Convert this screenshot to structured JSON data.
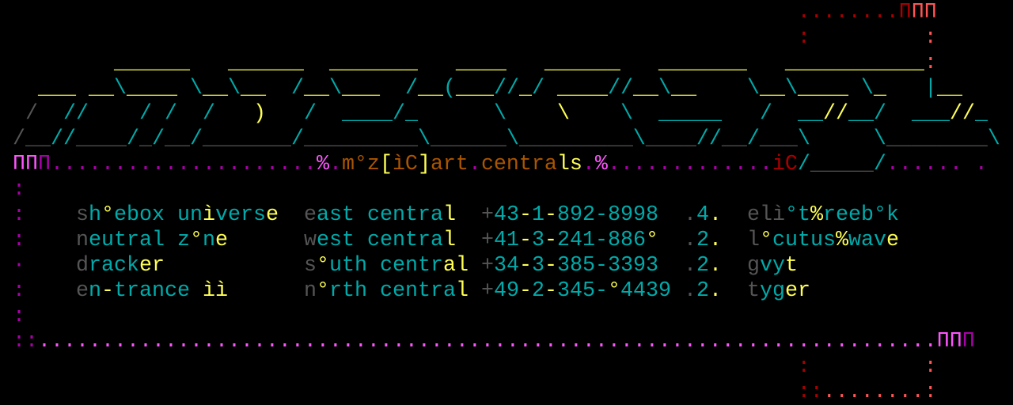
{
  "palette": {
    "g": "#555555",
    "c": "#00aaaa",
    "y": "#ffff55",
    "o": "#aa5500",
    "M": "#ff55ff",
    "m": "#aa00aa",
    "r": "#aa0000",
    "R": "#ff5555"
  },
  "header": {
    "title": "m°z[ìC]art.centrals"
  },
  "art_lines": [
    [
      [
        "                                                               ",
        ""
      ],
      [
        "........",
        "r"
      ],
      [
        "Π",
        "r"
      ],
      [
        "ΠΠ",
        "R"
      ]
    ],
    [
      [
        "                                                               ",
        ""
      ],
      [
        ":",
        "r"
      ],
      [
        "         ",
        ""
      ],
      [
        ":",
        "R"
      ]
    ],
    [
      [
        "         ",
        ""
      ],
      [
        "______",
        "y"
      ],
      [
        "   ",
        ""
      ],
      [
        "______",
        "y"
      ],
      [
        "  ",
        ""
      ],
      [
        "_______",
        "y"
      ],
      [
        "   ",
        ""
      ],
      [
        "____",
        "y"
      ],
      [
        "   ",
        ""
      ],
      [
        "______",
        "y"
      ],
      [
        "   ",
        ""
      ],
      [
        "_______",
        "y"
      ],
      [
        "   ",
        ""
      ],
      [
        "___________",
        "y"
      ],
      [
        ":",
        "R"
      ]
    ],
    [
      [
        "   ",
        ""
      ],
      [
        "___",
        "y"
      ],
      [
        " ",
        ""
      ],
      [
        "__",
        "y"
      ],
      [
        "\\",
        "c"
      ],
      [
        "____",
        "y"
      ],
      [
        " ",
        ""
      ],
      [
        "\\",
        "c"
      ],
      [
        "__",
        "y"
      ],
      [
        "\\",
        "c"
      ],
      [
        "__",
        "y"
      ],
      [
        "  ",
        ""
      ],
      [
        "/",
        "c"
      ],
      [
        "__",
        "y"
      ],
      [
        "\\",
        "c"
      ],
      [
        "___",
        "y"
      ],
      [
        "  ",
        ""
      ],
      [
        "/",
        "c"
      ],
      [
        "__",
        "y"
      ],
      [
        "(",
        "c"
      ],
      [
        "___",
        "y"
      ],
      [
        "//",
        "c"
      ],
      [
        "_",
        "y"
      ],
      [
        "/",
        "c"
      ],
      [
        " ",
        ""
      ],
      [
        "____",
        "y"
      ],
      [
        "//",
        "c"
      ],
      [
        "__",
        "y"
      ],
      [
        "\\",
        "c"
      ],
      [
        "__",
        "y"
      ],
      [
        "    ",
        ""
      ],
      [
        "\\",
        "c"
      ],
      [
        "__",
        "y"
      ],
      [
        "\\",
        "c"
      ],
      [
        "____",
        "y"
      ],
      [
        " ",
        ""
      ],
      [
        "\\",
        "c"
      ],
      [
        "_",
        "y"
      ],
      [
        "   ",
        ""
      ],
      [
        "|",
        "c"
      ],
      [
        "__",
        "y"
      ]
    ],
    [
      [
        "  ",
        ""
      ],
      [
        "/",
        "g"
      ],
      [
        "  ",
        ""
      ],
      [
        "//",
        "c"
      ],
      [
        "    ",
        ""
      ],
      [
        "/",
        "c"
      ],
      [
        " ",
        ""
      ],
      [
        "/",
        "c"
      ],
      [
        "  ",
        ""
      ],
      [
        "/",
        "c"
      ],
      [
        "   ",
        ""
      ],
      [
        ")",
        "y"
      ],
      [
        "   ",
        ""
      ],
      [
        "/",
        "c"
      ],
      [
        "  ",
        ""
      ],
      [
        "____",
        "c"
      ],
      [
        "/",
        "c"
      ],
      [
        "_",
        "c"
      ],
      [
        "      ",
        ""
      ],
      [
        "\\",
        "c"
      ],
      [
        "    ",
        ""
      ],
      [
        "\\",
        "y"
      ],
      [
        "    ",
        ""
      ],
      [
        "\\",
        "c"
      ],
      [
        "  ",
        ""
      ],
      [
        "_____",
        "c"
      ],
      [
        "   ",
        ""
      ],
      [
        "/",
        "c"
      ],
      [
        "  ",
        ""
      ],
      [
        "__",
        "c"
      ],
      [
        "//",
        "y"
      ],
      [
        "__",
        "c"
      ],
      [
        "/",
        "c"
      ],
      [
        "  ",
        ""
      ],
      [
        "___",
        "c"
      ],
      [
        "//",
        "y"
      ],
      [
        "_",
        "c"
      ]
    ],
    [
      [
        " ",
        ""
      ],
      [
        "/",
        "g"
      ],
      [
        "__",
        "g"
      ],
      [
        "//",
        "c"
      ],
      [
        "____",
        "g"
      ],
      [
        "/",
        "c"
      ],
      [
        "_",
        "g"
      ],
      [
        "/",
        "c"
      ],
      [
        "__",
        "g"
      ],
      [
        "/",
        "c"
      ],
      [
        "_______",
        "g"
      ],
      [
        "/",
        "c"
      ],
      [
        "_________",
        "g"
      ],
      [
        "\\",
        "c"
      ],
      [
        "______",
        "g"
      ],
      [
        "\\",
        "c"
      ],
      [
        "_________",
        "g"
      ],
      [
        "\\",
        "c"
      ],
      [
        "____",
        "g"
      ],
      [
        "//",
        "c"
      ],
      [
        "__",
        "g"
      ],
      [
        "/",
        "c"
      ],
      [
        "___",
        "g"
      ],
      [
        "\\",
        "c"
      ],
      [
        "     ",
        ""
      ],
      [
        "\\",
        "c"
      ],
      [
        "________",
        "g"
      ],
      [
        "\\",
        "c"
      ]
    ],
    [
      [
        " ",
        ""
      ],
      [
        "ΠΠ",
        "M"
      ],
      [
        "Π",
        "m"
      ],
      [
        ".....................",
        "m"
      ],
      [
        "%",
        "M"
      ],
      [
        ".",
        "m"
      ],
      [
        "m°z",
        "o"
      ],
      [
        "[",
        "y"
      ],
      [
        "ìC",
        "o"
      ],
      [
        "]",
        "y"
      ],
      [
        "art",
        "o"
      ],
      [
        ".",
        "m"
      ],
      [
        "centra",
        "o"
      ],
      [
        "ls",
        "y"
      ],
      [
        ".",
        "m"
      ],
      [
        "%",
        "M"
      ],
      [
        ".............",
        "m"
      ],
      [
        "iC",
        "r"
      ],
      [
        "/",
        "c"
      ],
      [
        "_____",
        "g"
      ],
      [
        "/",
        "c"
      ],
      [
        "......",
        "m"
      ],
      [
        " ",
        ""
      ],
      [
        ".",
        "m"
      ]
    ],
    [
      [
        " ",
        ""
      ],
      [
        ":",
        "m"
      ]
    ],
    [
      [
        " ",
        ""
      ],
      [
        ":",
        "m"
      ]
    ],
    [
      [
        " ",
        ""
      ],
      [
        ":",
        "m"
      ]
    ],
    [
      [
        " ",
        ""
      ],
      [
        "·",
        "m"
      ]
    ],
    [
      [
        " ",
        ""
      ],
      [
        ":",
        "m"
      ]
    ],
    [
      [
        " ",
        ""
      ],
      [
        ":",
        "m"
      ]
    ],
    [
      [
        " ",
        ""
      ],
      [
        "::",
        "m"
      ],
      [
        ".......................................................................",
        "M"
      ],
      [
        "ΠΠ",
        "M"
      ],
      [
        "Π",
        "m"
      ]
    ],
    [
      [
        "                                                               ",
        ""
      ],
      [
        ":",
        "r"
      ],
      [
        "         ",
        ""
      ],
      [
        ":",
        "R"
      ]
    ],
    [
      [
        "                                                               ",
        ""
      ],
      [
        "::",
        "r"
      ],
      [
        "........",
        "R"
      ],
      [
        ":",
        "R"
      ]
    ]
  ],
  "entries": [
    {
      "name": [
        [
          "s",
          "g"
        ],
        [
          "h",
          "c"
        ],
        [
          "°",
          "y"
        ],
        [
          "ebox un",
          "c"
        ],
        [
          "ì",
          "y"
        ],
        [
          "vers",
          "c"
        ],
        [
          "e",
          "y"
        ]
      ],
      "region": [
        [
          "e",
          "g"
        ],
        [
          "ast centra",
          "c"
        ],
        [
          "l",
          "y"
        ]
      ],
      "phone": [
        [
          "+",
          "g"
        ],
        [
          "43",
          "c"
        ],
        [
          "-",
          "y"
        ],
        [
          "1",
          "c"
        ],
        [
          "-",
          "y"
        ],
        [
          "892-8998",
          "c"
        ]
      ],
      "rank": [
        [
          ".",
          "g"
        ],
        [
          "4",
          "c"
        ],
        [
          ".",
          "y"
        ]
      ],
      "handle": [
        [
          "elì",
          "g"
        ],
        [
          "°t",
          "c"
        ],
        [
          "%",
          "y"
        ],
        [
          "reeb°k",
          "c"
        ]
      ]
    },
    {
      "name": [
        [
          "n",
          "g"
        ],
        [
          "eutral z",
          "c"
        ],
        [
          "°",
          "y"
        ],
        [
          "n",
          "c"
        ],
        [
          "e",
          "y"
        ]
      ],
      "region": [
        [
          "w",
          "g"
        ],
        [
          "est centra",
          "c"
        ],
        [
          "l",
          "y"
        ]
      ],
      "phone": [
        [
          "+",
          "g"
        ],
        [
          "41",
          "c"
        ],
        [
          "-",
          "y"
        ],
        [
          "3",
          "c"
        ],
        [
          "-",
          "y"
        ],
        [
          "241-886",
          "c"
        ],
        [
          "°",
          "y"
        ]
      ],
      "rank": [
        [
          ".",
          "g"
        ],
        [
          "2",
          "c"
        ],
        [
          ".",
          "y"
        ]
      ],
      "handle": [
        [
          "l",
          "g"
        ],
        [
          "°",
          "y"
        ],
        [
          "cutus",
          "c"
        ],
        [
          "%",
          "y"
        ],
        [
          "wav",
          "c"
        ],
        [
          "e",
          "y"
        ]
      ]
    },
    {
      "name": [
        [
          "d",
          "g"
        ],
        [
          "rack",
          "c"
        ],
        [
          "er",
          "y"
        ]
      ],
      "region": [
        [
          "s",
          "g"
        ],
        [
          "°",
          "y"
        ],
        [
          "uth centr",
          "c"
        ],
        [
          "al",
          "y"
        ]
      ],
      "phone": [
        [
          "+",
          "g"
        ],
        [
          "34",
          "c"
        ],
        [
          "-",
          "y"
        ],
        [
          "3",
          "c"
        ],
        [
          "-",
          "y"
        ],
        [
          "385-3393",
          "c"
        ]
      ],
      "rank": [
        [
          ".",
          "g"
        ],
        [
          "2",
          "c"
        ],
        [
          ".",
          "y"
        ]
      ],
      "handle": [
        [
          "g",
          "g"
        ],
        [
          "vy",
          "c"
        ],
        [
          "t",
          "y"
        ]
      ]
    },
    {
      "name": [
        [
          "e",
          "g"
        ],
        [
          "n",
          "c"
        ],
        [
          "-",
          "y"
        ],
        [
          "trance ",
          "c"
        ],
        [
          "ìì",
          "y"
        ]
      ],
      "region": [
        [
          "n",
          "g"
        ],
        [
          "°",
          "y"
        ],
        [
          "rth centra",
          "c"
        ],
        [
          "l",
          "y"
        ]
      ],
      "phone": [
        [
          "+",
          "g"
        ],
        [
          "49",
          "c"
        ],
        [
          "-",
          "y"
        ],
        [
          "2",
          "c"
        ],
        [
          "-",
          "y"
        ],
        [
          "345-",
          "c"
        ],
        [
          "°",
          "y"
        ],
        [
          "4439",
          "c"
        ]
      ],
      "rank": [
        [
          ".",
          "g"
        ],
        [
          "2",
          "c"
        ],
        [
          ".",
          "y"
        ]
      ],
      "handle": [
        [
          "t",
          "g"
        ],
        [
          "yg",
          "c"
        ],
        [
          "er",
          "y"
        ]
      ]
    }
  ]
}
